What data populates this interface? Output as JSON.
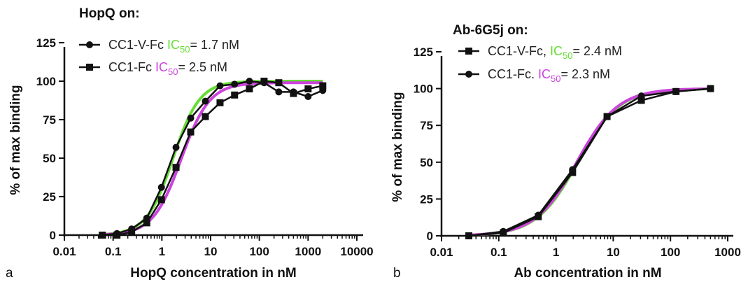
{
  "chart_data": [
    {
      "type": "line",
      "panel": "a",
      "legend_title": "HopQ on:",
      "xlabel": "HopQ concentration in nM",
      "ylabel": "% of max binding",
      "xscale": "log",
      "xlim": [
        0.01,
        10000
      ],
      "ylim": [
        0,
        125
      ],
      "x_ticks": [
        "0.01",
        "0.1",
        "1",
        "10",
        "100",
        "1000",
        "10000"
      ],
      "y_ticks": [
        "0",
        "25",
        "50",
        "75",
        "100",
        "125"
      ],
      "legend_position": "top-left",
      "series": [
        {
          "name": "CC1-V-Fc",
          "marker": "circle",
          "ic50_label": "IC",
          "ic50_sub": "50",
          "ic50_value": "= 1.7 nM",
          "ic50_color": "#66dd33",
          "x": [
            0.06,
            0.12,
            0.24,
            0.49,
            0.98,
            1.95,
            3.9,
            7.8,
            15.6,
            31,
            62.5,
            125,
            250,
            500,
            1000,
            2000
          ],
          "y": [
            0,
            1,
            4,
            11,
            31,
            57,
            76,
            87,
            97,
            98,
            100,
            99,
            93,
            93,
            90,
            94
          ]
        },
        {
          "name": "CC1-Fc",
          "marker": "square",
          "ic50_label": "IC",
          "ic50_sub": "50",
          "ic50_value": "= 2.5 nM",
          "ic50_color": "#cc44dd",
          "x": [
            0.06,
            0.12,
            0.24,
            0.49,
            0.98,
            1.95,
            3.9,
            7.8,
            15.6,
            31,
            62.5,
            125,
            250,
            500,
            1000,
            2000
          ],
          "y": [
            0,
            0,
            2,
            8,
            23,
            44,
            67,
            77,
            86,
            91,
            95,
            100,
            99,
            92,
            95,
            97
          ]
        }
      ],
      "fits": [
        {
          "color": "#66dd33",
          "ec50": 1.7,
          "hill": 1.6,
          "top": 100
        },
        {
          "color": "#cc44dd",
          "ec50": 2.5,
          "hill": 1.5,
          "top": 99
        }
      ]
    },
    {
      "type": "line",
      "panel": "b",
      "legend_title": "Ab-6G5j on:",
      "xlabel": "Ab concentration in nM",
      "ylabel": "% of max binding",
      "xscale": "log",
      "xlim": [
        0.01,
        1000
      ],
      "ylim": [
        0,
        125
      ],
      "x_ticks": [
        "0.01",
        "0.1",
        "1",
        "10",
        "100",
        "1000"
      ],
      "y_ticks": [
        "0",
        "25",
        "50",
        "75",
        "100",
        "125"
      ],
      "legend_position": "top-left",
      "series": [
        {
          "name": "CC1-V-Fc,",
          "marker": "square",
          "ic50_label": "IC",
          "ic50_sub": "50",
          "ic50_value": "= 2.4 nM",
          "ic50_color": "#66dd33",
          "x": [
            0.03,
            0.12,
            0.49,
            1.95,
            7.8,
            31,
            125,
            500
          ],
          "y": [
            0,
            2,
            13,
            43,
            81,
            92,
            98,
            100
          ]
        },
        {
          "name": "CC1-Fc.",
          "marker": "circle",
          "ic50_label": "IC",
          "ic50_sub": "50",
          "ic50_value": "= 2.3 nM",
          "ic50_color": "#cc44dd",
          "x": [
            0.03,
            0.12,
            0.49,
            1.95,
            7.8,
            31,
            125,
            500
          ],
          "y": [
            0,
            3,
            14,
            45,
            81,
            95,
            98,
            100
          ]
        }
      ],
      "fits": [
        {
          "color": "#66dd33",
          "ec50": 2.4,
          "hill": 1.2,
          "top": 100
        },
        {
          "color": "#cc44dd",
          "ec50": 2.3,
          "hill": 1.2,
          "top": 100
        }
      ]
    }
  ]
}
